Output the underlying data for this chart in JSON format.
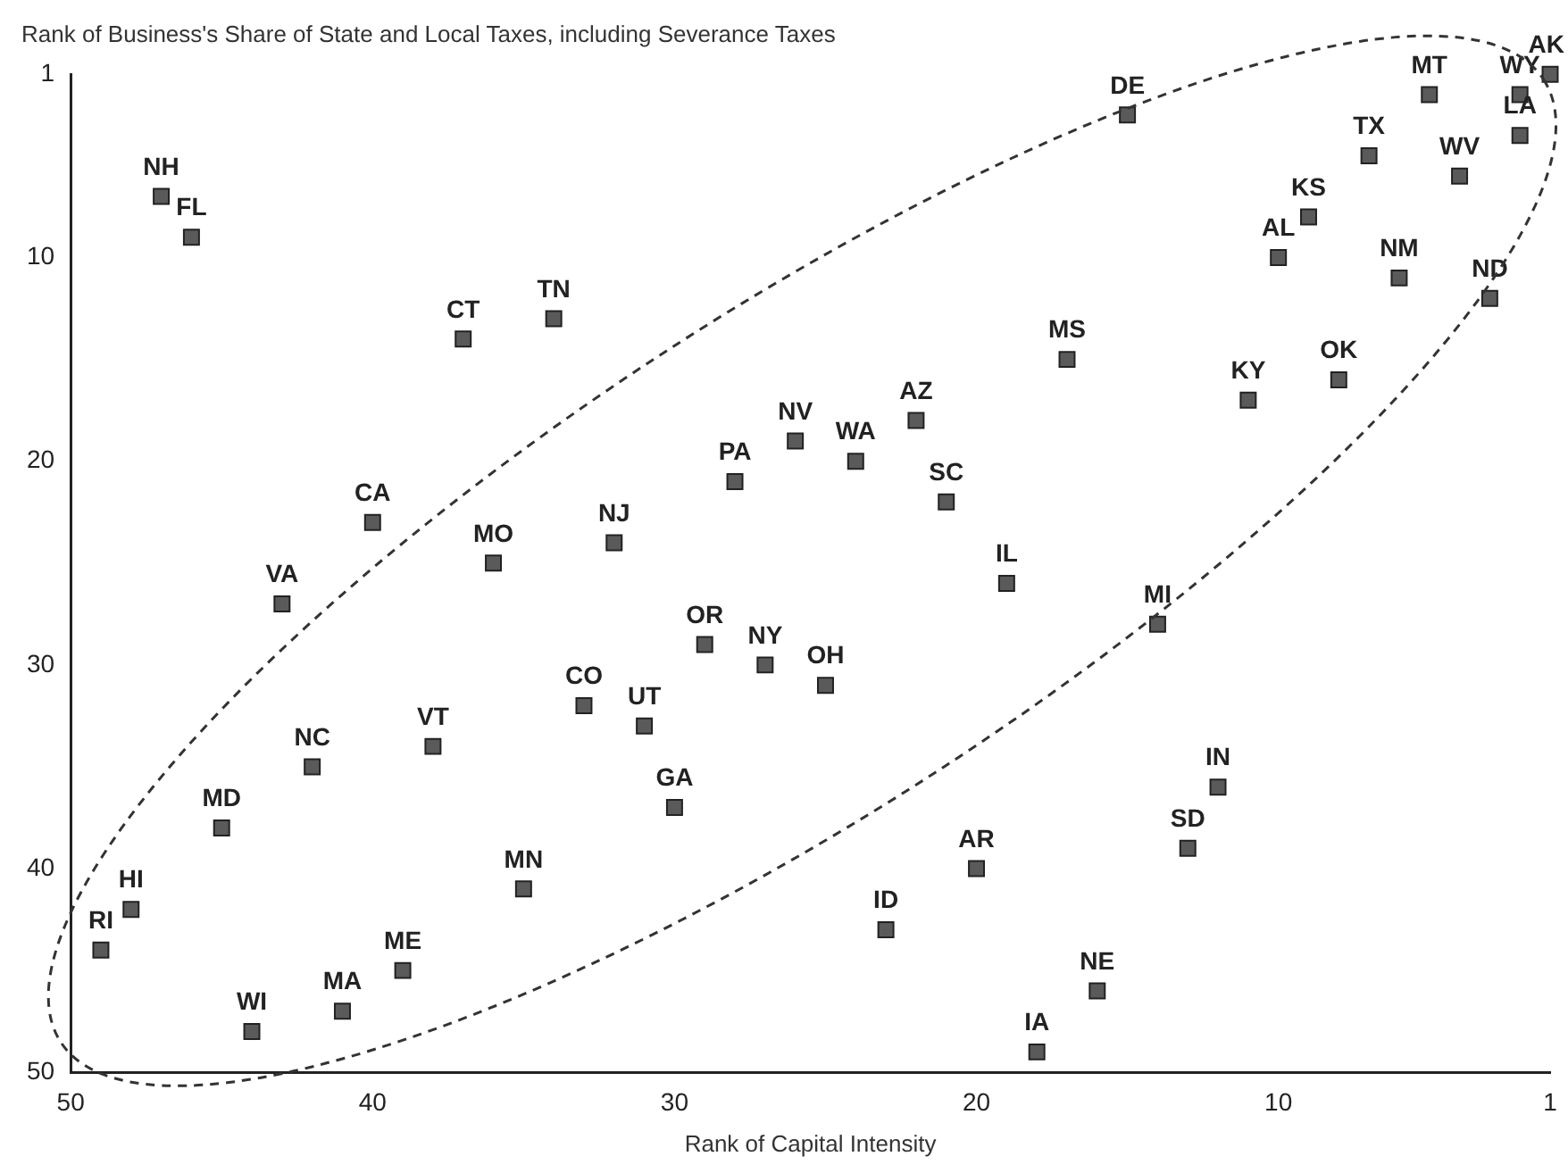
{
  "chart_data": {
    "type": "scatter",
    "ylabel": "Rank of Business's Share of State and Local Taxes, including Severance Taxes",
    "xlabel": "Rank of Capital Intensity",
    "xlim": [
      50,
      1
    ],
    "xticks": [
      50,
      40,
      30,
      20,
      10,
      1
    ],
    "ylim": [
      50,
      1
    ],
    "yticks": [
      1,
      10,
      20,
      30,
      40,
      50
    ],
    "grid": false,
    "legend": false,
    "marker": "square",
    "series": [
      {
        "color": "#5a5a5a",
        "x": [
          47,
          46,
          37,
          34,
          40,
          36,
          32,
          43,
          28,
          26,
          24,
          22,
          21,
          17,
          15,
          19,
          14,
          29,
          27,
          25,
          33,
          31,
          38,
          42,
          45,
          30,
          35,
          48,
          49,
          39,
          41,
          44,
          23,
          20,
          18,
          16,
          13,
          12,
          11,
          8,
          10,
          9,
          6,
          3,
          7,
          4,
          2,
          2,
          5,
          1
        ],
        "values": [
          7,
          9,
          14,
          13,
          23,
          25,
          24,
          27,
          21,
          19,
          20,
          18,
          22,
          15,
          3,
          26,
          28,
          29,
          30,
          31,
          32,
          33,
          34,
          35,
          38,
          37,
          41,
          42,
          44,
          45,
          47,
          48,
          43,
          40,
          49,
          46,
          39,
          36,
          17,
          16,
          10,
          8,
          11,
          12,
          5,
          6,
          4,
          2,
          2,
          1
        ]
      }
    ],
    "annotations": [
      {
        "text": "NH",
        "x": 47,
        "y": 7
      },
      {
        "text": "FL",
        "x": 46,
        "y": 9
      },
      {
        "text": "CT",
        "x": 37,
        "y": 14
      },
      {
        "text": "TN",
        "x": 34,
        "y": 13
      },
      {
        "text": "CA",
        "x": 40,
        "y": 23
      },
      {
        "text": "MO",
        "x": 36,
        "y": 25
      },
      {
        "text": "NJ",
        "x": 32,
        "y": 24
      },
      {
        "text": "VA",
        "x": 43,
        "y": 27
      },
      {
        "text": "PA",
        "x": 28,
        "y": 21
      },
      {
        "text": "NV",
        "x": 26,
        "y": 19
      },
      {
        "text": "WA",
        "x": 24,
        "y": 20
      },
      {
        "text": "AZ",
        "x": 22,
        "y": 18
      },
      {
        "text": "SC",
        "x": 21,
        "y": 22
      },
      {
        "text": "MS",
        "x": 17,
        "y": 15
      },
      {
        "text": "DE",
        "x": 15,
        "y": 3
      },
      {
        "text": "IL",
        "x": 19,
        "y": 26
      },
      {
        "text": "MI",
        "x": 14,
        "y": 28
      },
      {
        "text": "OR",
        "x": 29,
        "y": 29
      },
      {
        "text": "NY",
        "x": 27,
        "y": 30
      },
      {
        "text": "OH",
        "x": 25,
        "y": 31
      },
      {
        "text": "CO",
        "x": 33,
        "y": 32
      },
      {
        "text": "UT",
        "x": 31,
        "y": 33
      },
      {
        "text": "VT",
        "x": 38,
        "y": 34
      },
      {
        "text": "NC",
        "x": 42,
        "y": 35
      },
      {
        "text": "MD",
        "x": 45,
        "y": 38
      },
      {
        "text": "GA",
        "x": 30,
        "y": 37
      },
      {
        "text": "MN",
        "x": 35,
        "y": 41
      },
      {
        "text": "HI",
        "x": 48,
        "y": 42
      },
      {
        "text": "RI",
        "x": 49,
        "y": 44
      },
      {
        "text": "ME",
        "x": 39,
        "y": 45
      },
      {
        "text": "MA",
        "x": 41,
        "y": 47
      },
      {
        "text": "WI",
        "x": 44,
        "y": 48
      },
      {
        "text": "ID",
        "x": 23,
        "y": 43
      },
      {
        "text": "AR",
        "x": 20,
        "y": 40
      },
      {
        "text": "IA",
        "x": 18,
        "y": 49
      },
      {
        "text": "NE",
        "x": 16,
        "y": 46
      },
      {
        "text": "SD",
        "x": 13,
        "y": 39
      },
      {
        "text": "IN",
        "x": 12,
        "y": 36
      },
      {
        "text": "KY",
        "x": 11,
        "y": 17
      },
      {
        "text": "OK",
        "x": 8,
        "y": 16
      },
      {
        "text": "AL",
        "x": 10,
        "y": 10
      },
      {
        "text": "KS",
        "x": 9,
        "y": 8
      },
      {
        "text": "NM",
        "x": 6,
        "y": 11
      },
      {
        "text": "ND",
        "x": 3,
        "y": 12
      },
      {
        "text": "TX",
        "x": 7,
        "y": 5
      },
      {
        "text": "WV",
        "x": 4,
        "y": 6
      },
      {
        "text": "LA",
        "x": 2,
        "y": 4
      },
      {
        "text": "WY",
        "x": 2,
        "y": 2
      },
      {
        "text": "MT",
        "x": 5,
        "y": 2
      },
      {
        "text": "AK",
        "x": 1,
        "y": 1
      }
    ]
  }
}
